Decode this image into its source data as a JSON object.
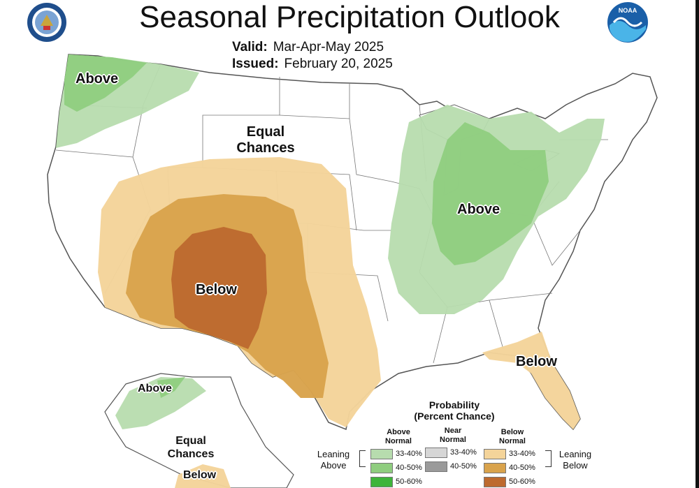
{
  "header": {
    "title": "Seasonal Precipitation Outlook",
    "valid_label": "Valid:",
    "valid_value": "Mar-Apr-May 2025",
    "issued_label": "Issued:",
    "issued_value": "February 20, 2025"
  },
  "logos": {
    "left": "department-of-commerce-seal",
    "right": "noaa-logo",
    "noaa_text": "NOAA"
  },
  "regions": {
    "northwest_above": "Above",
    "equal_chances_line1": "Equal",
    "equal_chances_line2": "Chances",
    "ohio_valley_above": "Above",
    "southwest_below": "Below",
    "southeast_below": "Below",
    "alaska_above": "Above",
    "alaska_equal_line1": "Equal",
    "alaska_equal_line2": "Chances",
    "alaska_below": "Below"
  },
  "legend": {
    "title_line1": "Probability",
    "title_line2": "(Percent Chance)",
    "above_header": "Above\nNormal",
    "near_header": "Near\nNormal",
    "below_header": "Below\nNormal",
    "leaning_above": "Leaning\nAbove",
    "leaning_below": "Leaning\nBelow",
    "above": [
      {
        "label": "33-40%",
        "color": "#b7dcae"
      },
      {
        "label": "40-50%",
        "color": "#8fcd7f"
      },
      {
        "label": "50-60%",
        "color": "#3eb43a"
      }
    ],
    "near": [
      {
        "label": "33-40%",
        "color": "#d6d6d6"
      },
      {
        "label": "40-50%",
        "color": "#9a9a9a"
      }
    ],
    "below": [
      {
        "label": "33-40%",
        "color": "#f4d49a"
      },
      {
        "label": "40-50%",
        "color": "#d9a34c"
      },
      {
        "label": "50-60%",
        "color": "#bd6a2f"
      }
    ]
  }
}
